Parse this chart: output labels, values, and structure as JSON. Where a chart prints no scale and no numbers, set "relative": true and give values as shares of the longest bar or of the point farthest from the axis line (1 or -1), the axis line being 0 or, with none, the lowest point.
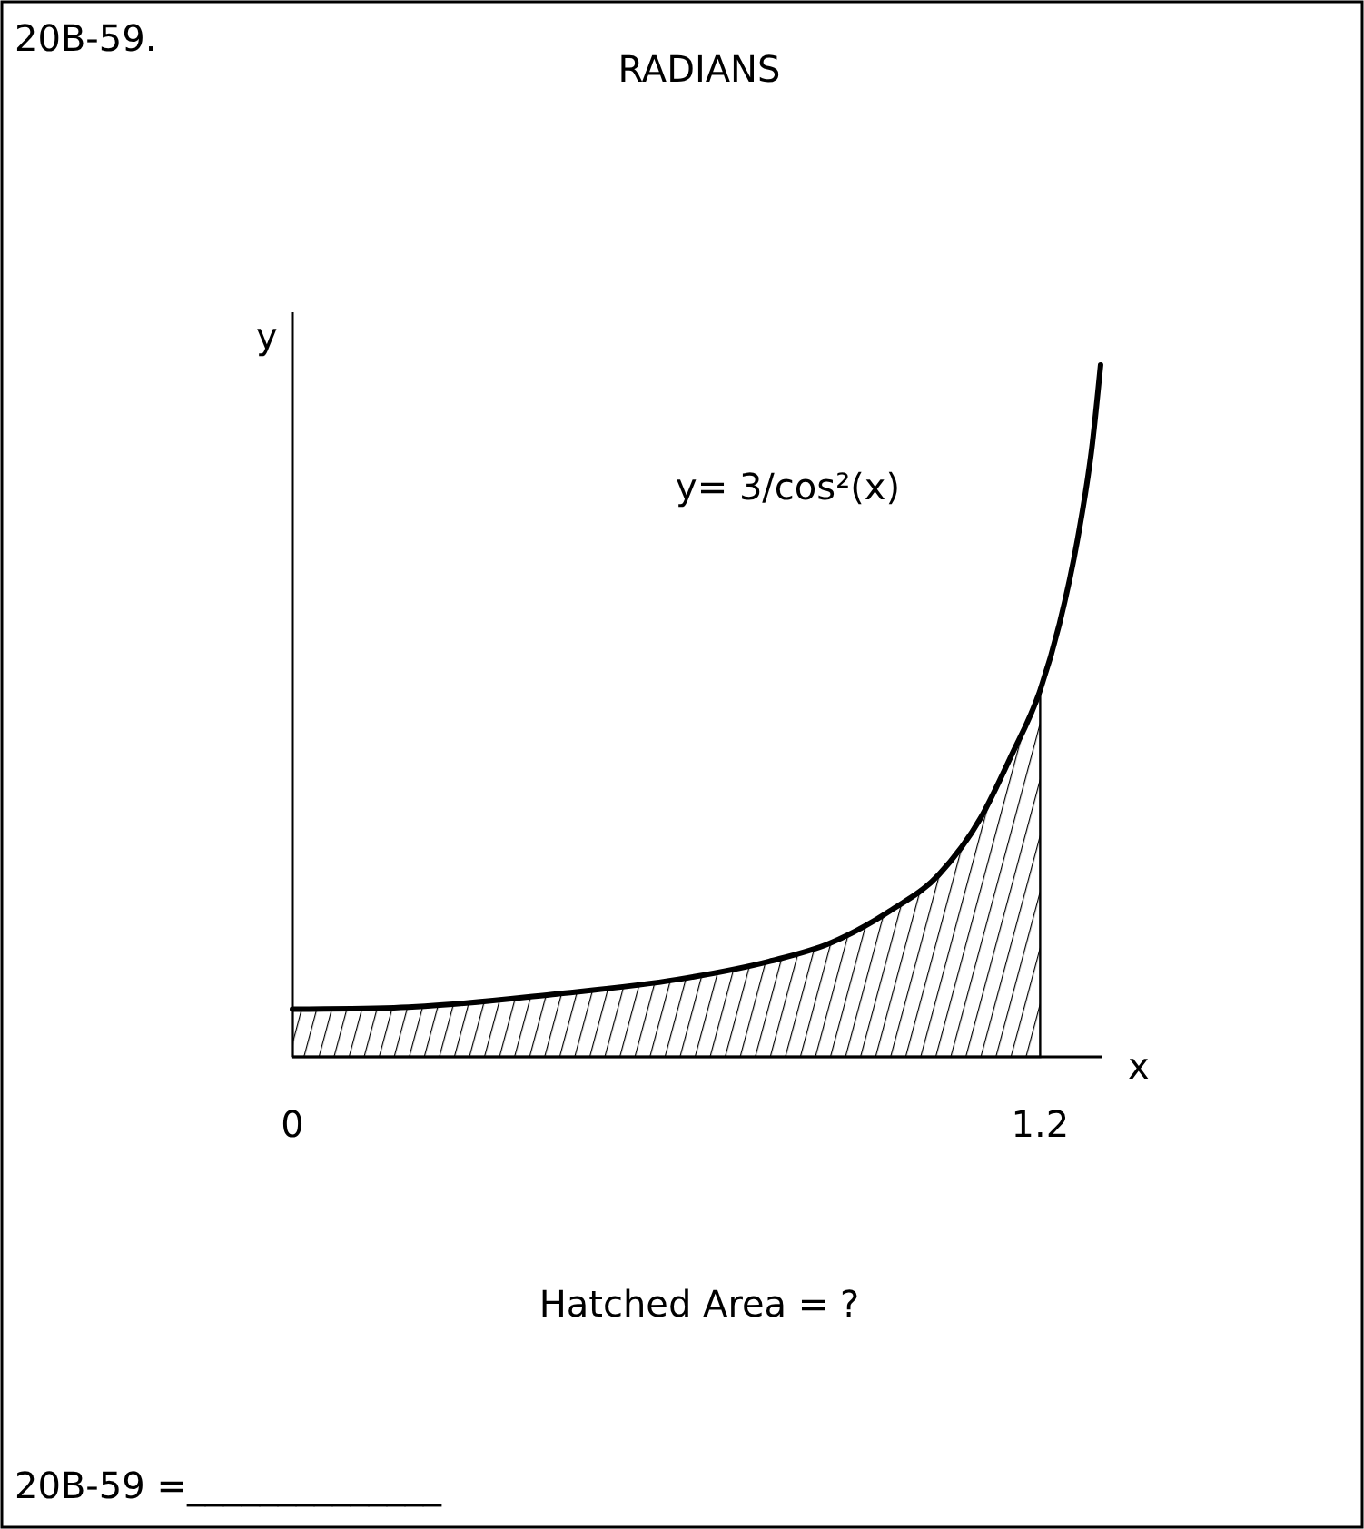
{
  "chart_data": {
    "type": "line",
    "title": "RADIANS",
    "xlabel": "x",
    "ylabel": "y",
    "relative": true,
    "x": [
      0,
      0.163,
      0.425,
      0.619,
      0.765,
      0.862,
      0.959,
      1.037,
      1.105,
      1.153,
      1.2,
      1.231,
      1.26,
      1.284,
      1.297
    ],
    "xlim": [
      0,
      1.3
    ],
    "xticks": [
      0,
      1.2
    ],
    "series": [
      {
        "color": "#000000",
        "values": [
          0.069,
          0.071,
          0.091,
          0.112,
          0.138,
          0.164,
          0.211,
          0.263,
          0.346,
          0.434,
          0.53,
          0.626,
          0.748,
          0.888,
          1
        ]
      },
      {
        "type": "area",
        "color": "#000000",
        "x": [
          0,
          0.163,
          0.425,
          0.619,
          0.765,
          0.862,
          0.959,
          1.037,
          1.105,
          1.153,
          1.2
        ],
        "values": [
          0.069,
          0.071,
          0.091,
          0.112,
          0.138,
          0.164,
          0.211,
          0.263,
          0.346,
          0.434,
          0.53
        ]
      }
    ],
    "annotations": [
      "20B-59.",
      "y= 3/cos²(x)",
      "Hatched Area = ?",
      "20B-59 =______________"
    ]
  }
}
